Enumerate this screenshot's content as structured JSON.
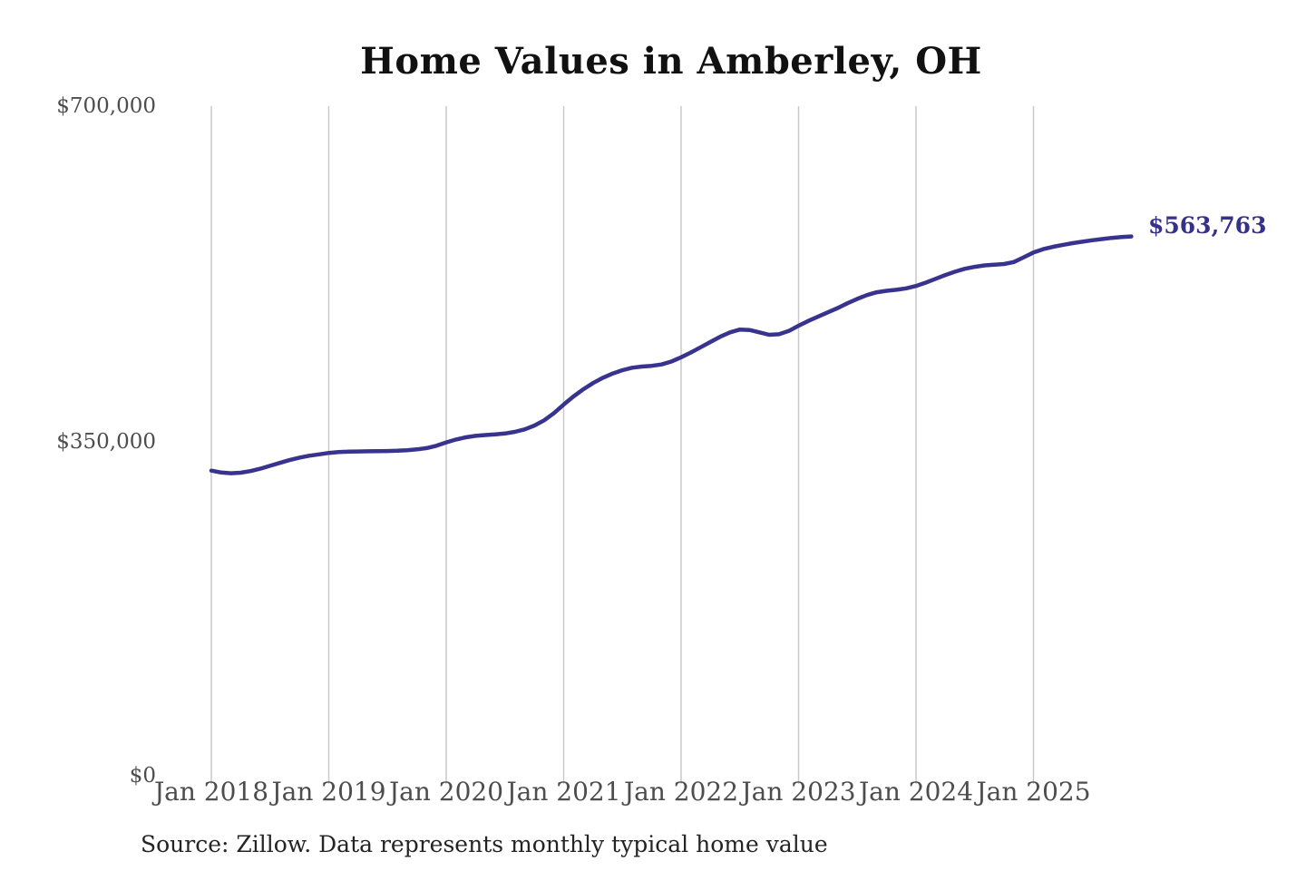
{
  "title": "Home Values in Amberley, OH",
  "source_note": "Source: Zillow. Data represents monthly typical home value",
  "end_label": "$563,763",
  "colors": {
    "line": "#38338f",
    "grid": "#c9c9c9",
    "axis_text": "#4d4d4d",
    "title_text": "#111111",
    "end_label_text": "#363189",
    "background": "#ffffff"
  },
  "chart_data": {
    "type": "line",
    "title": "Home Values in Amberley, OH",
    "xlabel": "",
    "ylabel": "",
    "x_unit": "month",
    "start_month": "2018-01",
    "x_tick_labels": [
      "Jan 2018",
      "Jan 2019",
      "Jan 2020",
      "Jan 2021",
      "Jan 2022",
      "Jan 2023",
      "Jan 2024",
      "Jan 2025"
    ],
    "y_tick_labels": [
      "$0",
      "$350,000",
      "$700,000"
    ],
    "y_tick_values": [
      0,
      350000,
      700000
    ],
    "ylim": [
      0,
      700000
    ],
    "grid": "vertical-only",
    "legend": "none",
    "end_value": 563763,
    "end_value_label": "$563,763",
    "values": [
      319000,
      317000,
      316200,
      316800,
      318500,
      321000,
      324000,
      327000,
      330000,
      332500,
      334500,
      336000,
      337500,
      338300,
      338800,
      339000,
      339200,
      339300,
      339500,
      339800,
      340300,
      341200,
      342500,
      345000,
      348500,
      351500,
      353800,
      355300,
      356200,
      356800,
      357800,
      359500,
      362000,
      366000,
      371500,
      379000,
      388000,
      396500,
      404000,
      410500,
      416000,
      420500,
      424000,
      426500,
      427800,
      428500,
      430000,
      433000,
      437500,
      442500,
      448000,
      453500,
      459000,
      463500,
      466500,
      466000,
      463500,
      461000,
      461500,
      465000,
      470500,
      475500,
      480000,
      484500,
      489000,
      494000,
      498500,
      502500,
      505500,
      507000,
      508000,
      509500,
      512000,
      515500,
      519500,
      523500,
      527000,
      530000,
      532000,
      533500,
      534200,
      535000,
      537000,
      542000,
      547000,
      550500,
      553000,
      555000,
      556800,
      558300,
      559800,
      561000,
      562300,
      563100,
      563763
    ]
  }
}
